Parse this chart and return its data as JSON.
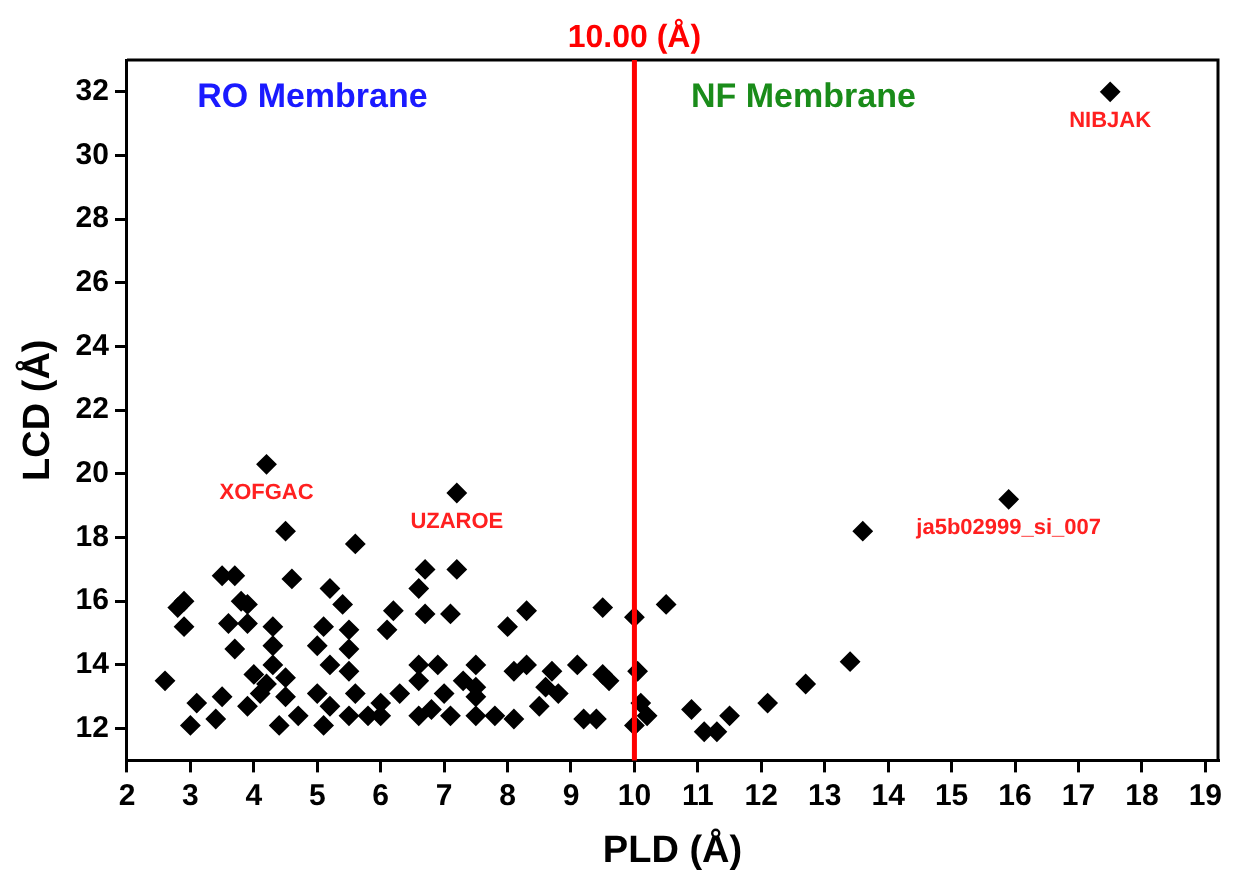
{
  "chart_data": {
    "type": "scatter",
    "xlabel": "PLD (Å)",
    "ylabel": "LCD (Å)",
    "marker": "diamond",
    "grid": false,
    "legend": false,
    "xlim": [
      2,
      19.2
    ],
    "xticks": [
      2,
      3,
      4,
      5,
      6,
      7,
      8,
      9,
      10,
      11,
      12,
      13,
      14,
      15,
      16,
      17,
      18,
      19
    ],
    "ylim": [
      11,
      33
    ],
    "yticks": [
      12,
      14,
      16,
      18,
      20,
      22,
      24,
      26,
      28,
      30,
      32
    ],
    "ref_lines": [
      {
        "axis": "x",
        "value": 10,
        "label": "10.00 (Å)",
        "color": "#ff0000"
      }
    ],
    "annotations": [
      "RO Membrane",
      "NF Membrane",
      {
        "text": "XOFGAC",
        "x": 4.2,
        "y": 20.3
      },
      {
        "text": "UZAROE",
        "x": 7.2,
        "y": 19.4
      },
      {
        "text": "NIBJAK",
        "x": 17.5,
        "y": 32
      },
      {
        "text": "ja5b02999_si_007",
        "x": 15.9,
        "y": 19.2
      }
    ],
    "series": [
      {
        "color": "#000000",
        "x": [
          10.0,
          10.5,
          10.05,
          10.1,
          10.0,
          10.2,
          10.9,
          11.1,
          11.3,
          11.5,
          12.1,
          12.7,
          13.4,
          13.6,
          15.9,
          17.5,
          7.2,
          6.7,
          7.2,
          6.6,
          8.3,
          8.0,
          9.5,
          6.2,
          6.7,
          7.1,
          6.1,
          6.6,
          6.9,
          7.5,
          6.6,
          7.3,
          7.5,
          8.1,
          8.3,
          8.7,
          9.1,
          9.5,
          9.6,
          8.6,
          8.8,
          8.5,
          9.2,
          9.4,
          6.0,
          6.6,
          6.8,
          7.1,
          7.5,
          7.8,
          8.1,
          7.5,
          6.3,
          7.0,
          4.2,
          4.5,
          5.6,
          3.5,
          3.7,
          4.6,
          2.9,
          2.8,
          3.8,
          3.9,
          5.2,
          5.4,
          2.9,
          3.6,
          3.9,
          4.3,
          5.1,
          5.5,
          3.7,
          4.3,
          5.0,
          5.5,
          4.3,
          4.0,
          4.2,
          4.5,
          5.2,
          5.5,
          2.6,
          3.1,
          3.5,
          3.0,
          3.4,
          3.9,
          4.4,
          4.7,
          5.0,
          5.2,
          5.1,
          5.5,
          5.8,
          5.6,
          6.0,
          4.1,
          4.5
        ],
        "values": [
          15.5,
          15.9,
          13.8,
          12.8,
          12.1,
          12.4,
          12.6,
          11.9,
          11.9,
          12.4,
          12.8,
          13.4,
          14.1,
          18.2,
          19.2,
          32,
          19.4,
          17.0,
          17.0,
          16.4,
          15.7,
          15.2,
          15.8,
          15.7,
          15.6,
          15.6,
          15.1,
          14.0,
          14.0,
          14.0,
          13.5,
          13.5,
          13.3,
          13.8,
          14.0,
          13.8,
          14.0,
          13.7,
          13.5,
          13.3,
          13.1,
          12.7,
          12.3,
          12.3,
          12.4,
          12.4,
          12.6,
          12.4,
          12.4,
          12.4,
          12.3,
          13.0,
          13.1,
          13.1,
          20.3,
          18.2,
          17.8,
          16.8,
          16.8,
          16.7,
          16.0,
          15.8,
          16.0,
          15.9,
          16.4,
          15.9,
          15.2,
          15.3,
          15.3,
          15.2,
          15.2,
          15.1,
          14.5,
          14.6,
          14.6,
          14.5,
          14.0,
          13.7,
          13.4,
          13.6,
          14.0,
          13.8,
          13.5,
          12.8,
          13.0,
          12.1,
          12.3,
          12.7,
          12.1,
          12.4,
          13.1,
          12.7,
          12.1,
          12.4,
          12.4,
          13.1,
          12.8,
          13.1,
          13.0
        ]
      }
    ]
  }
}
